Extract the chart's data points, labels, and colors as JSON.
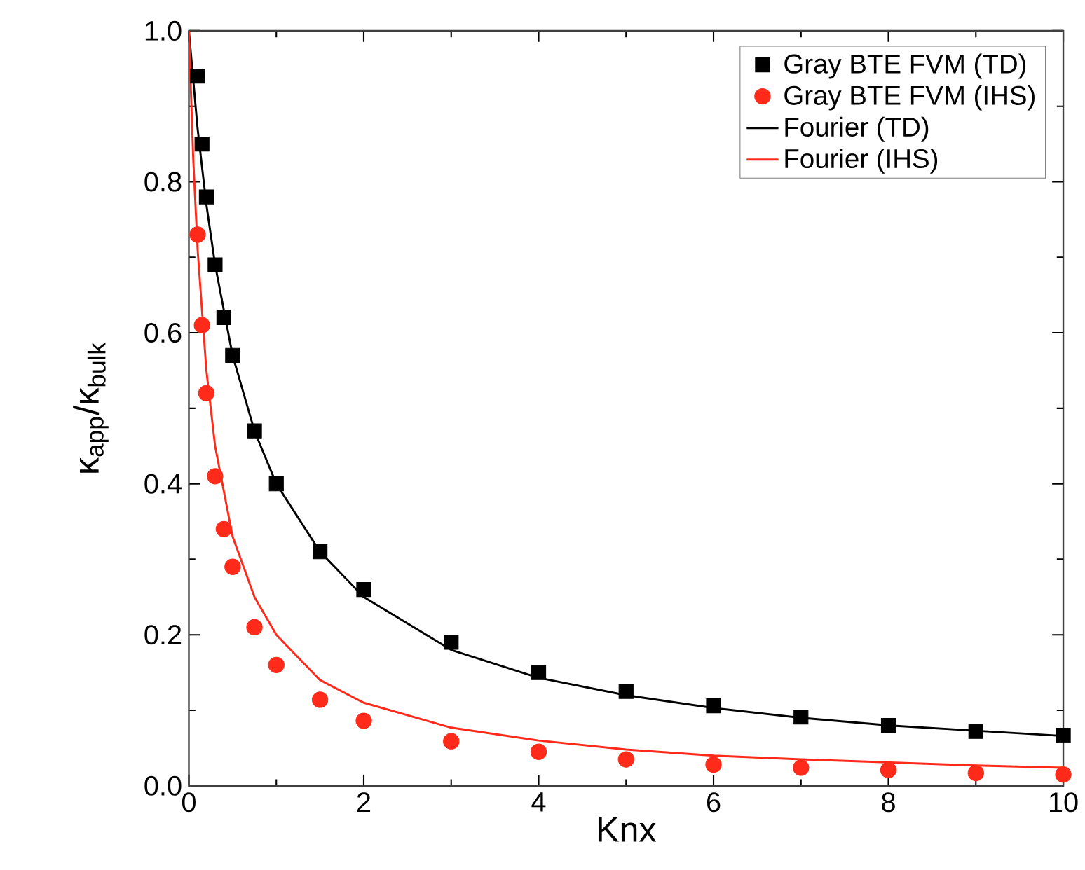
{
  "chart_data": {
    "type": "scatter",
    "xlabel": "Knx",
    "ylabel": "κ$_{app}$/κ$_{bulk}$",
    "xlim": [
      0,
      10
    ],
    "ylim": [
      0,
      1.0
    ],
    "xticks": [
      0,
      2,
      4,
      6,
      8,
      10
    ],
    "yticks": [
      {
        "value": 0,
        "label": "0.0"
      },
      0.2,
      0.4,
      0.6,
      0.8,
      {
        "value": 1,
        "label": "1.0"
      }
    ],
    "legend": "top right",
    "grid": false,
    "series": [
      {
        "name": "Gray BTE FVM (TD)",
        "marker": "square",
        "color": "#000000",
        "x": [
          0.1,
          0.15,
          0.2,
          0.3,
          0.4,
          0.5,
          0.75,
          1,
          1.5,
          2,
          3,
          4,
          5,
          6,
          7,
          8,
          9,
          10
        ],
        "values": [
          0.94,
          0.85,
          0.78,
          0.69,
          0.62,
          0.57,
          0.47,
          0.4,
          0.31,
          0.26,
          0.19,
          0.15,
          0.125,
          0.106,
          0.091,
          0.08,
          0.072,
          0.067
        ]
      },
      {
        "name": "Gray BTE FVM (IHS)",
        "marker": "circle",
        "color": "#ff2a1a",
        "x": [
          0.1,
          0.15,
          0.2,
          0.3,
          0.4,
          0.5,
          0.75,
          1,
          1.5,
          2,
          3,
          4,
          5,
          6,
          7,
          8,
          9,
          10
        ],
        "values": [
          0.73,
          0.61,
          0.52,
          0.41,
          0.34,
          0.29,
          0.21,
          0.16,
          0.114,
          0.086,
          0.059,
          0.045,
          0.035,
          0.028,
          0.024,
          0.021,
          0.017,
          0.015
        ]
      },
      {
        "name": "Fourier (TD)",
        "type": "line",
        "marker": "none",
        "color": "#000000",
        "x": [
          0,
          0.1,
          0.2,
          0.3,
          0.5,
          0.75,
          1,
          1.5,
          2,
          3,
          4,
          5,
          6,
          7,
          8,
          9,
          10
        ],
        "values": [
          1.0,
          0.87,
          0.77,
          0.69,
          0.57,
          0.47,
          0.4,
          0.31,
          0.25,
          0.18,
          0.143,
          0.12,
          0.103,
          0.09,
          0.08,
          0.073,
          0.066
        ]
      },
      {
        "name": "Fourier (IHS)",
        "type": "line",
        "marker": "none",
        "color": "#ff2a1a",
        "x": [
          0,
          0.05,
          0.1,
          0.2,
          0.3,
          0.5,
          0.75,
          1,
          1.5,
          2,
          3,
          4,
          5,
          6,
          7,
          8,
          9,
          10
        ],
        "values": [
          1.0,
          0.83,
          0.71,
          0.55,
          0.45,
          0.33,
          0.25,
          0.2,
          0.14,
          0.11,
          0.077,
          0.06,
          0.048,
          0.04,
          0.035,
          0.031,
          0.027,
          0.024
        ]
      }
    ]
  }
}
